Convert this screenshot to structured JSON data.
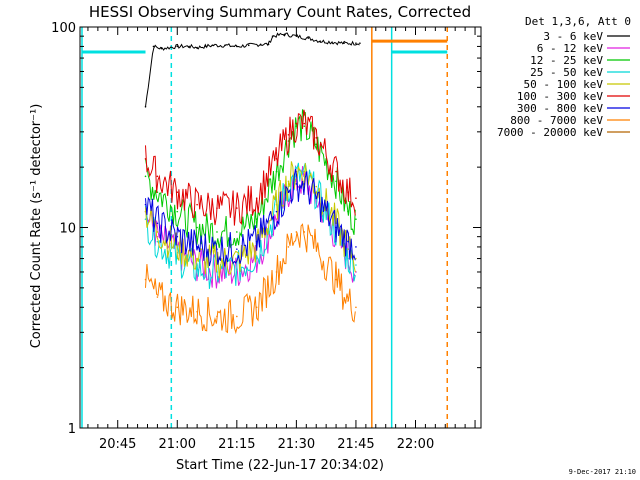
{
  "footer_date": "9-Dec-2017 21:10",
  "chart_data": {
    "type": "line",
    "title": "HESSI Observing Summary Count Rates, Corrected",
    "xlabel": "Start Time (22-Jun-17 20:34:02)",
    "ylabel": "Corrected Count Rate (s⁻¹ detector⁻¹)",
    "y_scale": "log",
    "ylim": [
      1,
      100
    ],
    "yticks": [
      1,
      10,
      100
    ],
    "ytick_labels": [
      "1",
      "10",
      "100"
    ],
    "xlim_minutes": [
      20.5,
      57.5
    ],
    "xticks": [
      {
        "minute": 30,
        "label": "20:45"
      },
      {
        "minute": 45,
        "label": "21:00"
      },
      {
        "minute": 60,
        "label": "21:15"
      },
      {
        "minute": 75,
        "label": "21:30"
      },
      {
        "minute": 90,
        "label": "21:45"
      },
      {
        "minute": 105,
        "label": "22:00"
      }
    ],
    "x_minutes_from_2030": [
      27,
      30,
      33,
      36,
      39,
      42,
      45,
      48,
      51,
      54,
      57
    ],
    "legend_title": "Det 1,3,6, Att 0",
    "legend_position": "right, outside plot",
    "series": [
      {
        "name": "3 - 6 keV",
        "color": "#000000",
        "x": [
          37,
          39,
          41,
          45,
          48,
          50,
          52,
          54,
          57,
          60,
          63,
          66,
          68,
          69,
          72,
          75,
          78,
          81,
          84,
          87,
          90,
          91
        ],
        "values": [
          40,
          80,
          78,
          80,
          80,
          79,
          80,
          81,
          81,
          80,
          81,
          82,
          82,
          90,
          92,
          90,
          88,
          85,
          84,
          83,
          83,
          83
        ]
      },
      {
        "name": "6 - 12 keV",
        "color": "#e020e0",
        "x": [
          37,
          40,
          45,
          50,
          55,
          60,
          65,
          70,
          73,
          75,
          77,
          80,
          85,
          88,
          90
        ],
        "values": [
          12,
          9,
          7.5,
          6.5,
          6,
          6,
          7,
          11,
          15,
          17,
          17,
          14,
          9,
          7,
          6
        ]
      },
      {
        "name": "12 - 25 keV",
        "color": "#00c800",
        "x": [
          37,
          40,
          45,
          50,
          55,
          60,
          65,
          70,
          73,
          75,
          77,
          80,
          85,
          88,
          90
        ],
        "values": [
          18,
          15,
          12,
          10,
          9.5,
          9.5,
          11,
          19,
          27,
          32,
          32,
          26,
          17,
          12,
          11
        ]
      },
      {
        "name": "25 - 50 keV",
        "color": "#00d8d8",
        "x": [
          37,
          40,
          45,
          50,
          55,
          60,
          65,
          70,
          73,
          75,
          77,
          80,
          85,
          88,
          90
        ],
        "values": [
          11,
          8.5,
          7,
          6.2,
          6,
          6.2,
          7.2,
          12,
          16,
          18,
          18,
          15,
          9.5,
          7,
          6.5
        ]
      },
      {
        "name": "50 - 100 keV",
        "color": "#c8c800",
        "x": [
          37,
          40,
          45,
          50,
          55,
          60,
          65,
          70,
          73,
          75,
          77,
          80,
          85,
          88,
          90
        ],
        "values": [
          12,
          9.5,
          8,
          7,
          6.8,
          6.8,
          8,
          13,
          17,
          19,
          19,
          16,
          10.5,
          7.8,
          7
        ]
      },
      {
        "name": "100 - 300 keV",
        "color": "#e00000",
        "x": [
          37,
          40,
          45,
          50,
          55,
          60,
          65,
          70,
          73,
          75,
          77,
          80,
          85,
          88,
          90
        ],
        "values": [
          22,
          18,
          15,
          13,
          12.5,
          12.5,
          14,
          22,
          29,
          33,
          33,
          28,
          19,
          15,
          14
        ]
      },
      {
        "name": "300 - 800 keV",
        "color": "#0000e0",
        "x": [
          37,
          40,
          45,
          50,
          55,
          60,
          65,
          70,
          73,
          75,
          77,
          80,
          85,
          88,
          90
        ],
        "values": [
          13,
          10.5,
          9,
          8,
          7.8,
          7.8,
          8.5,
          12,
          15,
          16.5,
          16.5,
          14,
          10,
          8.5,
          8
        ]
      },
      {
        "name": "800 - 7000 keV",
        "color": "#ff8000",
        "x": [
          37,
          40,
          45,
          50,
          55,
          60,
          65,
          70,
          73,
          75,
          77,
          80,
          85,
          88,
          90
        ],
        "values": [
          5.5,
          4.5,
          4,
          3.8,
          3.6,
          3.6,
          4,
          6,
          8,
          9.5,
          9.5,
          8,
          5.5,
          4.3,
          4
        ]
      },
      {
        "name": "7000 - 20000 keV",
        "color": "#b46400",
        "x": [],
        "values": []
      }
    ],
    "annotations": [
      {
        "type": "vertical-line",
        "style": "solid",
        "color": "#00e0e0",
        "minute": 21
      },
      {
        "type": "vertical-line",
        "style": "dashed",
        "color": "#00e0e0",
        "minute": 43.5
      },
      {
        "type": "vertical-line",
        "style": "solid",
        "color": "#ff8000",
        "minute": 94
      },
      {
        "type": "vertical-line",
        "style": "solid",
        "color": "#00e0e0",
        "minute": 99
      },
      {
        "type": "vertical-line",
        "style": "dashed",
        "color": "#ff8000",
        "minute": 113
      },
      {
        "type": "horizontal-segment",
        "color": "#00e0e0",
        "x": [
          21,
          37
        ],
        "value": 75
      },
      {
        "type": "horizontal-segment",
        "color": "#ff8000",
        "x": [
          94,
          113
        ],
        "value": 85
      },
      {
        "type": "horizontal-segment",
        "color": "#00e0e0",
        "x": [
          99,
          113
        ],
        "value": 75
      }
    ],
    "grid": false
  }
}
